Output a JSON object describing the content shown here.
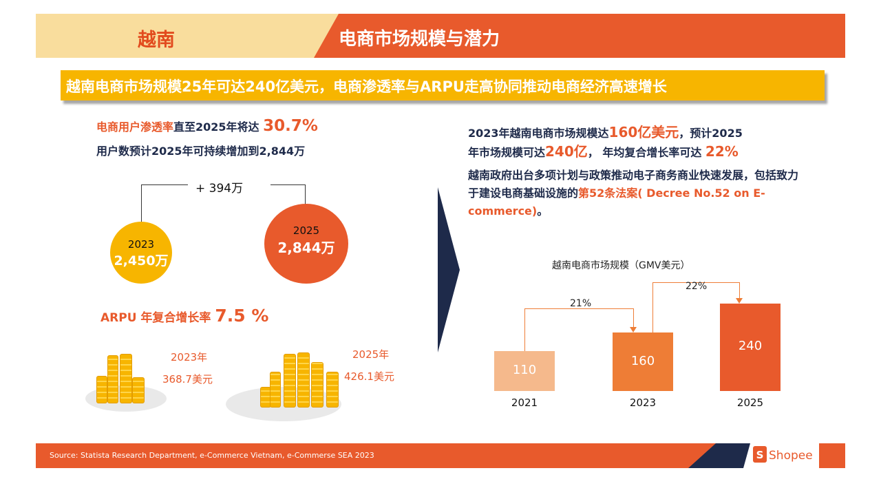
{
  "header": {
    "region": "越南",
    "title": "电商市场规模与潜力"
  },
  "headline": "越南电商市场规模25年可达240亿美元，电商渗透率与ARPU走高协同推动电商经济高速增长",
  "left": {
    "penetration_label": "电商用户渗透率",
    "penetration_mid": "直至2025年将达 ",
    "penetration_value": "30.7%",
    "users_line": "用户数预计2025年可持续增加到2,844万",
    "delta": "+ 394万",
    "circles": [
      {
        "year": "2023",
        "value": "2,450万"
      },
      {
        "year": "2025",
        "value": "2,844万"
      }
    ],
    "arpu_label": "ARPU 年复合增长率 ",
    "arpu_value": "7.5 %",
    "arpu_items": [
      {
        "year": "2023年",
        "value": "368.7美元"
      },
      {
        "year": "2025年",
        "value": "426.1美元"
      }
    ]
  },
  "right": {
    "line1_a": "2023年越南电商市场规模达",
    "line1_b": "160亿美元",
    "line1_c": "，预计2025",
    "line2_a": "年市场规模可达",
    "line2_b": "240亿",
    "line2_c": "， 年均复合增长率可达 ",
    "line2_d": "22%",
    "para_a": "越南政府出台多项计划与政策推动电子商务商业快速发展，包括致力于建设电商基础设施的",
    "para_b": "第52条法案( Decree No.52 on E-commerce)",
    "para_c": "。"
  },
  "chart_data": {
    "type": "bar",
    "title": "越南电商市场规模（GMV美元）",
    "categories": [
      "2021",
      "2023",
      "2025"
    ],
    "values": [
      110,
      160,
      240
    ],
    "growth_labels": [
      "21%",
      "22%"
    ],
    "colors": [
      "#f5b98c",
      "#ee7d36",
      "#e85a2c"
    ]
  },
  "footer": {
    "source": "Source: Statista Research Department, e-Commerce Vietnam, e-Commerse SEA 2023",
    "brand_letter": "S",
    "brand": "Shopee"
  }
}
